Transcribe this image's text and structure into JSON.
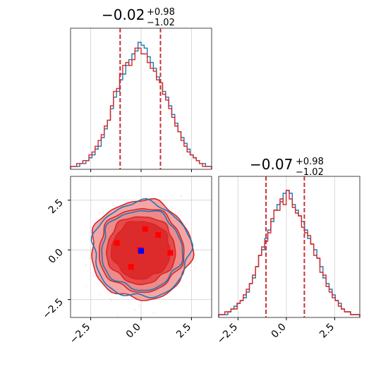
{
  "colors": {
    "series_a": "#1f77b4",
    "series_b": "#d62728",
    "grid": "#d9d9d9",
    "marker_red": "#ff0000",
    "marker_blue": "#0000ff"
  },
  "titles": {
    "p1": {
      "main": "−0.02",
      "sup": "+0.98",
      "sub": "−1.02"
    },
    "p2": {
      "main": "−0.07",
      "sup": "+0.98",
      "sub": "−1.02"
    }
  },
  "chart_data": [
    {
      "type": "histogram",
      "panel": "top-left",
      "xlim": [
        -3.5,
        3.5
      ],
      "grid": true,
      "quantile_lines": {
        "series_a": [
          -1.04,
          0.96
        ],
        "series_b": [
          -1.04,
          0.96
        ]
      },
      "series": [
        {
          "key": "a",
          "counts": [
            1,
            1,
            1,
            2,
            2,
            3,
            4,
            5,
            7,
            8,
            11,
            14,
            17,
            21,
            25,
            27,
            31,
            33,
            36,
            38,
            40,
            41,
            44,
            43,
            42,
            39,
            37,
            35,
            32,
            30,
            27,
            25,
            22,
            19,
            16,
            13,
            11,
            9,
            7,
            5,
            4,
            3,
            2,
            2,
            1,
            1
          ]
        },
        {
          "key": "b",
          "counts": [
            1,
            1,
            2,
            2,
            3,
            3,
            5,
            6,
            8,
            10,
            12,
            15,
            17,
            22,
            27,
            28,
            33,
            36,
            37,
            36,
            38,
            42,
            42,
            40,
            40,
            37,
            35,
            34,
            31,
            30,
            26,
            24,
            21,
            18,
            15,
            13,
            10,
            8,
            6,
            5,
            4,
            3,
            2,
            1,
            1,
            1
          ]
        }
      ]
    },
    {
      "type": "histogram",
      "panel": "bottom-right",
      "xlim": [
        -3.5,
        3.8
      ],
      "xticks": [
        "−2.5",
        "0.0",
        "2.5"
      ],
      "grid": true,
      "quantile_lines": {
        "series_a": [
          -1.05,
          0.93
        ],
        "series_b": [
          -1.05,
          0.93
        ]
      },
      "series": [
        {
          "key": "a",
          "counts": [
            1,
            1,
            1,
            2,
            3,
            4,
            5,
            6,
            7,
            9,
            12,
            14,
            18,
            22,
            24,
            28,
            31,
            34,
            38,
            40,
            41,
            44,
            45,
            44,
            40,
            38,
            36,
            34,
            31,
            28,
            26,
            24,
            21,
            18,
            14,
            12,
            10,
            8,
            6,
            5,
            3,
            2,
            2,
            1,
            1,
            1
          ]
        },
        {
          "key": "b",
          "counts": [
            1,
            1,
            2,
            2,
            3,
            3,
            5,
            6,
            8,
            10,
            12,
            15,
            18,
            22,
            25,
            27,
            30,
            35,
            38,
            38,
            42,
            40,
            45,
            42,
            39,
            37,
            36,
            32,
            30,
            29,
            26,
            22,
            21,
            16,
            15,
            11,
            9,
            7,
            6,
            4,
            3,
            2,
            2,
            1,
            1,
            1
          ]
        }
      ]
    },
    {
      "type": "contour",
      "panel": "bottom-left",
      "xlim": [
        -3.5,
        3.5
      ],
      "ylim": [
        -3.4,
        3.7
      ],
      "xticks": [
        "−2.5",
        "0.0",
        "2.5"
      ],
      "yticks": [
        "2.5",
        "0.0",
        "−2.5"
      ],
      "grid": true,
      "levels": [
        {
          "series": "a",
          "radius": 2.4
        },
        {
          "series": "a",
          "radius": 2.0
        },
        {
          "series": "b",
          "radius": 2.5,
          "fill": "#f4a6a6"
        },
        {
          "series": "b",
          "radius": 2.1,
          "fill": "#ee8a8a"
        },
        {
          "series": "b",
          "radius": 1.7,
          "fill": "#e74a4a"
        },
        {
          "series": "b",
          "radius": 1.45,
          "fill": "#dd2a2a"
        }
      ],
      "markers": [
        {
          "color": "red",
          "x": -1.2,
          "y": 0.35
        },
        {
          "color": "red",
          "x": 0.2,
          "y": 1.05
        },
        {
          "color": "red",
          "x": 0.85,
          "y": 0.75
        },
        {
          "color": "red",
          "x": 1.45,
          "y": -0.15
        },
        {
          "color": "red",
          "x": -0.5,
          "y": -0.85
        },
        {
          "color": "red",
          "x": -0.05,
          "y": 0.0
        },
        {
          "color": "blue",
          "x": 0.0,
          "y": -0.05
        }
      ]
    }
  ]
}
